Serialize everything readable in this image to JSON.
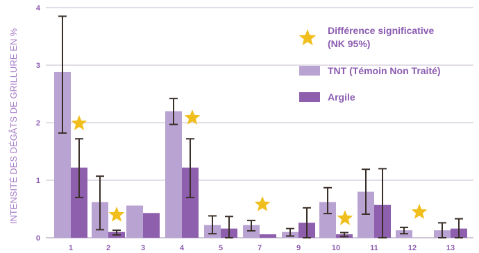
{
  "colors": {
    "tnt": "#b9a3d3",
    "argile": "#8e5fad",
    "star": "#f0bf1e",
    "errorbar": "#3a2f28",
    "grid": "#b0a5bd",
    "text": "#8b5bb0"
  },
  "chart_data": {
    "type": "bar",
    "ylabel": "INTENSITÉ DES DÉGÂTS DE GRILLURE EN %",
    "xlabel": "",
    "ylim": [
      0,
      4
    ],
    "yticks": [
      "0",
      "1",
      "2",
      "3",
      "4"
    ],
    "grid": true,
    "legend_position": "top-right",
    "categories": [
      "1",
      "2",
      "3",
      "4",
      "5",
      "7",
      "9",
      "10",
      "11",
      "12",
      "13"
    ],
    "series": [
      {
        "name": "TNT (Témoin Non Traité)",
        "color_key": "tnt",
        "values": [
          2.88,
          0.62,
          0.56,
          2.2,
          0.22,
          0.22,
          0.1,
          0.62,
          0.8,
          0.13,
          0.13
        ],
        "error_low": [
          1.82,
          0.14,
          null,
          1.97,
          0.07,
          0.12,
          0.03,
          0.42,
          0.41,
          0.07,
          0.0
        ],
        "error_high": [
          3.85,
          1.07,
          null,
          2.42,
          0.38,
          0.3,
          0.16,
          0.87,
          1.19,
          0.18,
          0.26
        ]
      },
      {
        "name": "Argile",
        "color_key": "argile",
        "values": [
          1.22,
          0.1,
          0.43,
          1.22,
          0.16,
          0.06,
          0.26,
          0.06,
          0.57,
          0.0,
          0.16
        ],
        "error_low": [
          0.7,
          0.05,
          null,
          0.7,
          0.0,
          null,
          0.0,
          0.02,
          0.0,
          null,
          0.0
        ],
        "error_high": [
          1.72,
          0.13,
          null,
          1.72,
          0.37,
          null,
          0.52,
          0.09,
          1.2,
          null,
          0.33
        ]
      }
    ],
    "significant": [
      true,
      true,
      false,
      true,
      false,
      true,
      false,
      true,
      false,
      true,
      false
    ],
    "legend": [
      {
        "symbol": "star",
        "label_lines": [
          "Différence significative",
          "(NK 95%)"
        ]
      },
      {
        "symbol": "tnt",
        "label_lines": [
          "TNT (Témoin Non Traité)"
        ]
      },
      {
        "symbol": "argile",
        "label_lines": [
          "Argile"
        ]
      }
    ]
  }
}
